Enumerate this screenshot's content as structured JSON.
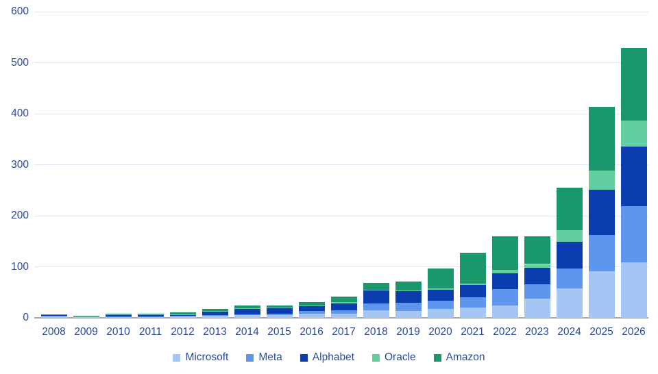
{
  "chart_data": {
    "type": "bar",
    "stacked": true,
    "title": "",
    "xlabel": "",
    "ylabel": "",
    "categories": [
      "2008",
      "2009",
      "2010",
      "2011",
      "2012",
      "2013",
      "2014",
      "2015",
      "2016",
      "2017",
      "2018",
      "2019",
      "2020",
      "2021",
      "2022",
      "2023",
      "2024",
      "2025",
      "2026"
    ],
    "series": [
      {
        "name": "Microsoft",
        "color": "#a5c6f4",
        "values": [
          3.2,
          1.9,
          2.0,
          2.4,
          2.3,
          4.3,
          5.5,
          5.9,
          8.3,
          8.7,
          14.2,
          13.9,
          17.6,
          20.6,
          24.8,
          38,
          58,
          91,
          109
        ]
      },
      {
        "name": "Meta",
        "color": "#5e96ee",
        "values": [
          0.3,
          0.1,
          0.3,
          0.6,
          1.2,
          1.4,
          1.8,
          2.5,
          4.5,
          6.7,
          13.9,
          15.1,
          15.7,
          19.2,
          31.4,
          28.1,
          39,
          72,
          110
        ]
      },
      {
        "name": "Alphabet",
        "color": "#0c3dae",
        "values": [
          2.4,
          0.8,
          4.0,
          3.4,
          3.3,
          7.4,
          11.0,
          9.9,
          10.2,
          13.2,
          25.1,
          23.5,
          22.3,
          24.6,
          31.5,
          32.3,
          52.5,
          88,
          117
        ]
      },
      {
        "name": "Oracle",
        "color": "#63cfa0",
        "values": [
          0.3,
          0.2,
          0.2,
          0.4,
          0.6,
          0.7,
          0.6,
          1.2,
          1.2,
          2.0,
          1.7,
          1.7,
          1.6,
          2.1,
          6.0,
          7.0,
          22,
          37,
          50
        ]
      },
      {
        "name": "Amazon",
        "color": "#1a986b",
        "values": [
          0.3,
          0.4,
          1.0,
          1.8,
          3.8,
          3.4,
          4.9,
          4.6,
          6.7,
          11.3,
          13.4,
          16.9,
          40.1,
          61.1,
          66,
          55,
          83,
          125,
          143
        ]
      }
    ],
    "ylim": [
      0,
      600
    ],
    "yticks": [
      "0",
      "100",
      "200",
      "300",
      "400",
      "500",
      "600"
    ],
    "grid": true,
    "legend_position": "bottom",
    "colors": {
      "tick_label": "#2b4a9c",
      "gridline": "#dde7f3",
      "axis_line": "#a3a9af",
      "background": "#ffffff"
    }
  }
}
